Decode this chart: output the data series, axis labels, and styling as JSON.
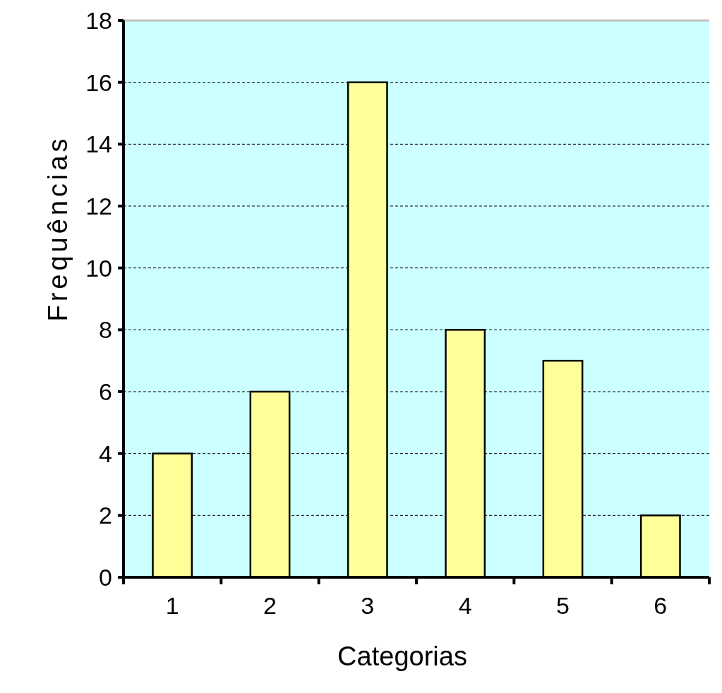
{
  "chart_data": {
    "type": "bar",
    "xlabel": "Categorias",
    "ylabel": "Frequências",
    "categories": [
      "1",
      "2",
      "3",
      "4",
      "5",
      "6"
    ],
    "values": [
      4,
      6,
      16,
      8,
      7,
      2
    ],
    "color": "#ffff99",
    "ylim": [
      0,
      18
    ],
    "yticks": [
      0,
      2,
      4,
      6,
      8,
      10,
      12,
      14,
      16,
      18
    ],
    "grid": "y"
  }
}
